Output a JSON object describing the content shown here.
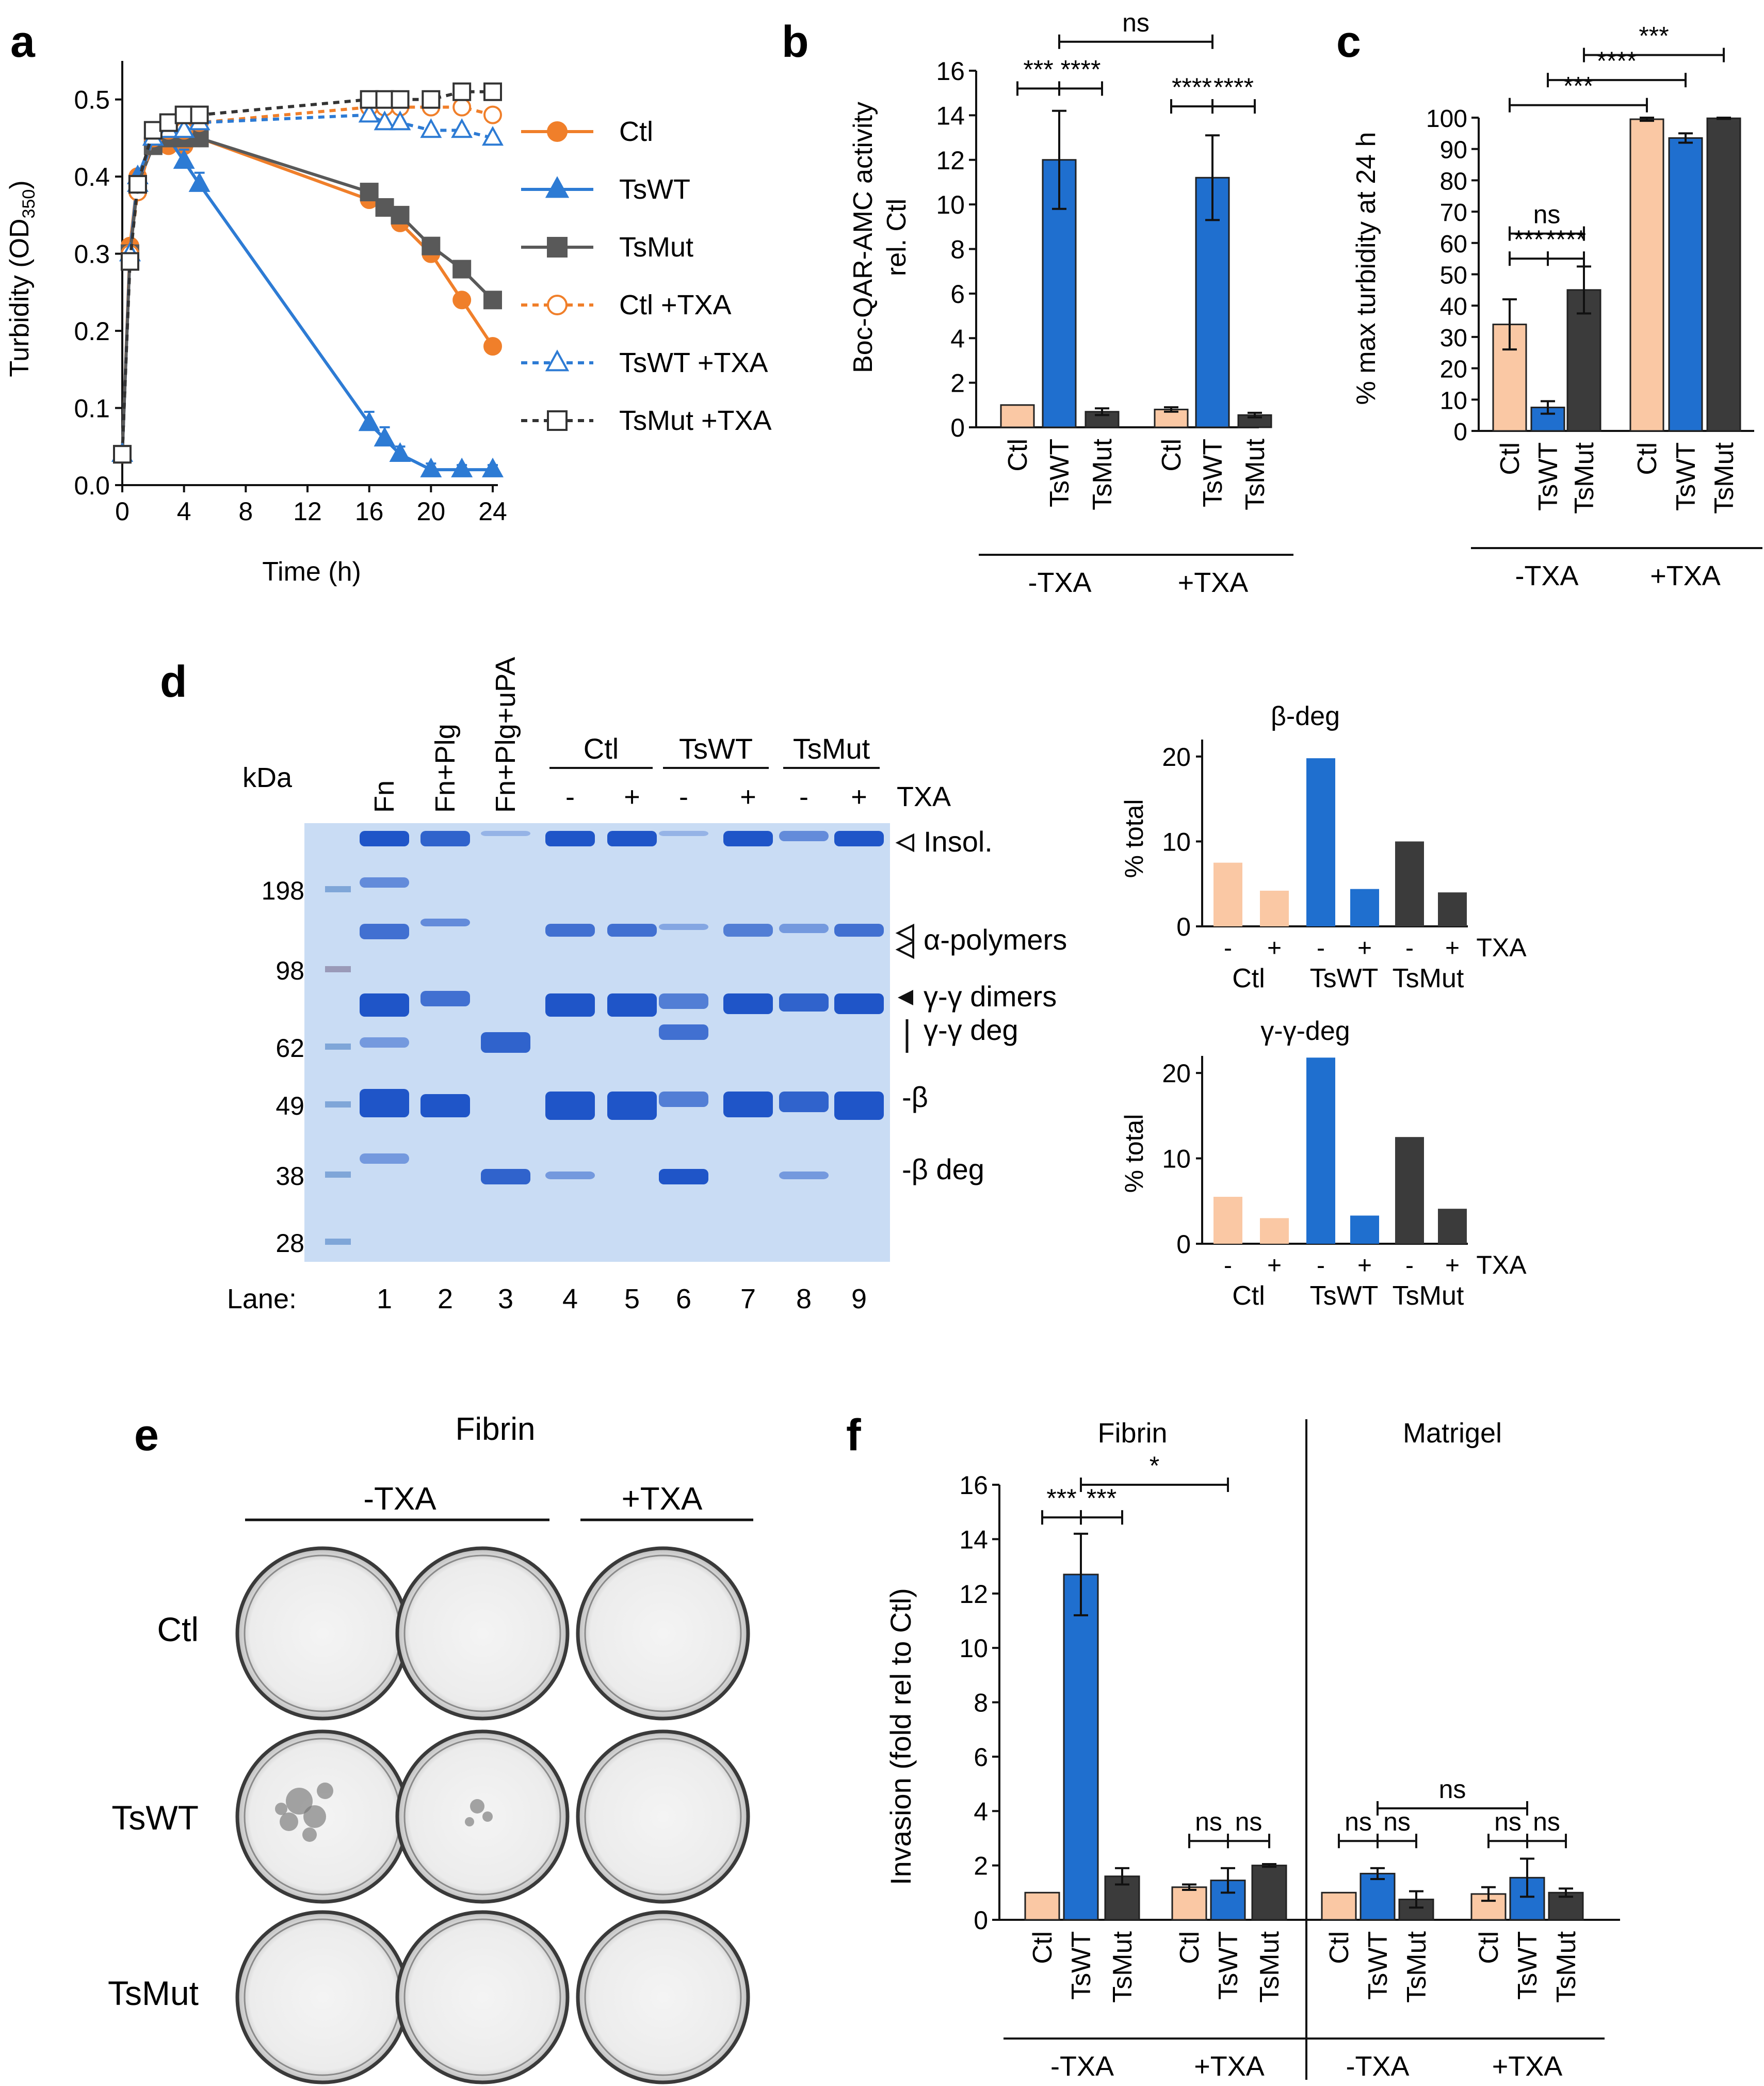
{
  "colors": {
    "ctl": "#fac8a4",
    "tswt": "#1f6fcf",
    "tsmut": "#3b3b3b",
    "line_ctl": "#f07f2a",
    "line_tswt": "#2d7bd4",
    "line_tsmut": "#595959"
  },
  "panel_letters": {
    "a": "a",
    "b": "b",
    "c": "c",
    "d": "d",
    "e": "e",
    "f": "f"
  },
  "common": {
    "ctl": "Ctl",
    "tswt": "TsWT",
    "tsmut": "TsMut",
    "neg_txa": "-TXA",
    "pos_txa": "+TXA",
    "txa": "TXA",
    "minus": "-",
    "plus": "+"
  },
  "chart_data": [
    {
      "id": "a",
      "type": "line",
      "title": "",
      "xlabel": "Time (h)",
      "ylabel_main": "Turbidity (OD",
      "ylabel_sub": "350",
      "ylabel_end": ")",
      "xlim": [
        0,
        24
      ],
      "ylim": [
        0,
        0.55
      ],
      "xticks": [
        "0",
        "4",
        "8",
        "12",
        "16",
        "20",
        "24"
      ],
      "yticks": [
        "0.0",
        "0.1",
        "0.2",
        "0.3",
        "0.4",
        "0.5"
      ],
      "series": [
        {
          "name": "Ctl",
          "x": [
            0,
            0.5,
            1,
            2,
            3,
            4,
            5,
            16,
            17,
            18,
            20,
            22,
            24
          ],
          "y": [
            0.04,
            0.31,
            0.4,
            0.44,
            0.44,
            0.44,
            0.45,
            0.37,
            0.36,
            0.34,
            0.3,
            0.24,
            0.18
          ]
        },
        {
          "name": "TsWT",
          "x": [
            0,
            0.5,
            1,
            2,
            3,
            4,
            5,
            16,
            17,
            18,
            20,
            22,
            24
          ],
          "y": [
            0.04,
            0.3,
            0.4,
            0.45,
            0.45,
            0.42,
            0.39,
            0.08,
            0.06,
            0.04,
            0.02,
            0.02,
            0.02
          ]
        },
        {
          "name": "TsMut",
          "x": [
            0,
            0.5,
            1,
            2,
            3,
            4,
            5,
            16,
            17,
            18,
            20,
            22,
            24
          ],
          "y": [
            0.04,
            0.3,
            0.39,
            0.44,
            0.45,
            0.45,
            0.45,
            0.38,
            0.36,
            0.35,
            0.31,
            0.28,
            0.24
          ]
        },
        {
          "name": "Ctl +TXA",
          "x": [
            0,
            0.5,
            1,
            2,
            3,
            4,
            5,
            16,
            17,
            18,
            20,
            22,
            24
          ],
          "y": [
            0.04,
            0.3,
            0.38,
            0.45,
            0.46,
            0.46,
            0.47,
            0.49,
            0.49,
            0.49,
            0.49,
            0.49,
            0.48
          ]
        },
        {
          "name": "TsWT +TXA",
          "x": [
            0,
            0.5,
            1,
            2,
            3,
            4,
            5,
            16,
            17,
            18,
            20,
            22,
            24
          ],
          "y": [
            0.04,
            0.3,
            0.39,
            0.45,
            0.46,
            0.46,
            0.47,
            0.48,
            0.47,
            0.47,
            0.46,
            0.46,
            0.45
          ]
        },
        {
          "name": "TsMut +TXA",
          "x": [
            0,
            0.5,
            1,
            2,
            3,
            4,
            5,
            16,
            17,
            18,
            20,
            22,
            24
          ],
          "y": [
            0.04,
            0.29,
            0.39,
            0.46,
            0.47,
            0.48,
            0.48,
            0.5,
            0.5,
            0.5,
            0.5,
            0.51,
            0.51
          ]
        }
      ]
    },
    {
      "id": "b",
      "type": "bar",
      "ylabel_line1": "Boc-QAR-AMC activity",
      "ylabel_line2": "rel. Ctl",
      "ylim": [
        0,
        16
      ],
      "yticks": [
        "0",
        "2",
        "4",
        "6",
        "8",
        "10",
        "12",
        "14",
        "16"
      ],
      "groups": [
        "-TXA",
        "+TXA"
      ],
      "categories": [
        "Ctl",
        "TsWT",
        "TsMut",
        "Ctl",
        "TsWT",
        "TsMut"
      ],
      "values": [
        1.0,
        12.0,
        0.7,
        0.8,
        11.2,
        0.55
      ],
      "errors": [
        0,
        2.2,
        0.15,
        0.1,
        1.9,
        0.1
      ],
      "significance": [
        {
          "label": "***",
          "from": 0,
          "to": 1,
          "y": 15.2
        },
        {
          "label": "****",
          "from": 1,
          "to": 2,
          "y": 15.2
        },
        {
          "label": "ns",
          "from": 1,
          "to": 4,
          "y": 17.3
        },
        {
          "label": "****",
          "from": 3,
          "to": 4,
          "y": 14.4
        },
        {
          "label": "****",
          "from": 4,
          "to": 5,
          "y": 14.4
        }
      ]
    },
    {
      "id": "c",
      "type": "bar",
      "ylabel": "% max turbidity at 24 h",
      "ylim": [
        0,
        100
      ],
      "yticks": [
        "0",
        "10",
        "20",
        "30",
        "40",
        "50",
        "60",
        "70",
        "80",
        "90",
        "100"
      ],
      "groups": [
        "-TXA",
        "+TXA"
      ],
      "categories": [
        "Ctl",
        "TsWT",
        "TsMut",
        "Ctl",
        "TsWT",
        "TsMut"
      ],
      "values": [
        34,
        7.5,
        45,
        99.5,
        93.5,
        99.8
      ],
      "errors": [
        8,
        2,
        7.5,
        0.5,
        1.5,
        0.2
      ],
      "significance": [
        {
          "label": "ns",
          "from": 0,
          "to": 2,
          "y": 63
        },
        {
          "label": "***",
          "from": 0,
          "to": 1,
          "y": 55
        },
        {
          "label": "****",
          "from": 1,
          "to": 2,
          "y": 55
        },
        {
          "label": "***",
          "from": 0,
          "to": 3,
          "y": 104
        },
        {
          "label": "****",
          "from": 1,
          "to": 4,
          "y": 112
        },
        {
          "label": "***",
          "from": 2,
          "to": 5,
          "y": 120
        }
      ]
    },
    {
      "id": "d_beta",
      "type": "bar",
      "title": "β-deg",
      "ylabel": "% total",
      "ylim": [
        0,
        22
      ],
      "yticks": [
        "0",
        "10",
        "20"
      ],
      "txa": [
        "-",
        "+",
        "-",
        "+",
        "-",
        "+"
      ],
      "groups": [
        "Ctl",
        "TsWT",
        "TsMut"
      ],
      "values": [
        7.5,
        4.2,
        19.8,
        4.4,
        10.0,
        4.0
      ]
    },
    {
      "id": "d_gamma",
      "type": "bar",
      "title": "γ-γ-deg",
      "ylabel": "% total",
      "ylim": [
        0,
        22
      ],
      "yticks": [
        "0",
        "10",
        "20"
      ],
      "txa": [
        "-",
        "+",
        "-",
        "+",
        "-",
        "+"
      ],
      "groups": [
        "Ctl",
        "TsWT",
        "TsMut"
      ],
      "values": [
        5.5,
        3.0,
        21.8,
        3.3,
        12.5,
        4.1
      ]
    },
    {
      "id": "f",
      "type": "bar",
      "ylabel": "Invasion (fold rel to Ctl)",
      "ylim": [
        0,
        16
      ],
      "yticks": [
        "0",
        "2",
        "4",
        "6",
        "8",
        "10",
        "12",
        "14",
        "16"
      ],
      "sections": [
        "Fibrin",
        "Matrigel"
      ],
      "groups": [
        "-TXA",
        "+TXA",
        "-TXA",
        "+TXA"
      ],
      "categories": [
        "Ctl",
        "TsWT",
        "TsMut",
        "Ctl",
        "TsWT",
        "TsMut",
        "Ctl",
        "TsWT",
        "TsMut",
        "Ctl",
        "TsWT",
        "TsMut"
      ],
      "values": [
        1.0,
        12.7,
        1.6,
        1.2,
        1.45,
        2.0,
        1.0,
        1.7,
        0.75,
        0.95,
        1.55,
        1.0
      ],
      "errors": [
        0,
        1.5,
        0.3,
        0.1,
        0.45,
        0.05,
        0,
        0.2,
        0.3,
        0.25,
        0.7,
        0.15
      ],
      "significance": [
        {
          "label": "***",
          "from": 0,
          "to": 1,
          "y": 14.8
        },
        {
          "label": "***",
          "from": 1,
          "to": 2,
          "y": 14.8
        },
        {
          "label": "*",
          "from": 1,
          "to": 4,
          "y": 16.0
        },
        {
          "label": "ns",
          "from": 3,
          "to": 4,
          "y": 2.9
        },
        {
          "label": "ns",
          "from": 4,
          "to": 5,
          "y": 2.9
        },
        {
          "label": "ns",
          "from": 6,
          "to": 7,
          "y": 2.9
        },
        {
          "label": "ns",
          "from": 7,
          "to": 8,
          "y": 2.9
        },
        {
          "label": "ns",
          "from": 7,
          "to": 10,
          "y": 4.1
        },
        {
          "label": "ns",
          "from": 9,
          "to": 10,
          "y": 2.9
        },
        {
          "label": "ns",
          "from": 10,
          "to": 11,
          "y": 2.9
        }
      ]
    }
  ],
  "gel": {
    "kda_label": "kDa",
    "markers": [
      "198",
      "98",
      "62",
      "49",
      "38",
      "28"
    ],
    "lane_headers": [
      "Fn",
      "Fn+Plg",
      "Fn+Plg+uPA"
    ],
    "group_headers": [
      "Ctl",
      "TsWT",
      "TsMut"
    ],
    "txa_header": "TXA",
    "lane_label": "Lane:",
    "lanes": [
      "1",
      "2",
      "3",
      "4",
      "5",
      "6",
      "7",
      "8",
      "9"
    ],
    "txa_signs": [
      "-",
      "+",
      "-",
      "+",
      "-",
      "+"
    ],
    "annotations": [
      "Insol.",
      "α-polymers",
      "γ-γ dimers",
      "γ-γ deg",
      "-β",
      "-β deg"
    ]
  },
  "dishes": {
    "title": "Fibrin",
    "col_groups": [
      "-TXA",
      "+TXA"
    ],
    "rows": [
      "Ctl",
      "TsWT",
      "TsMut"
    ]
  }
}
